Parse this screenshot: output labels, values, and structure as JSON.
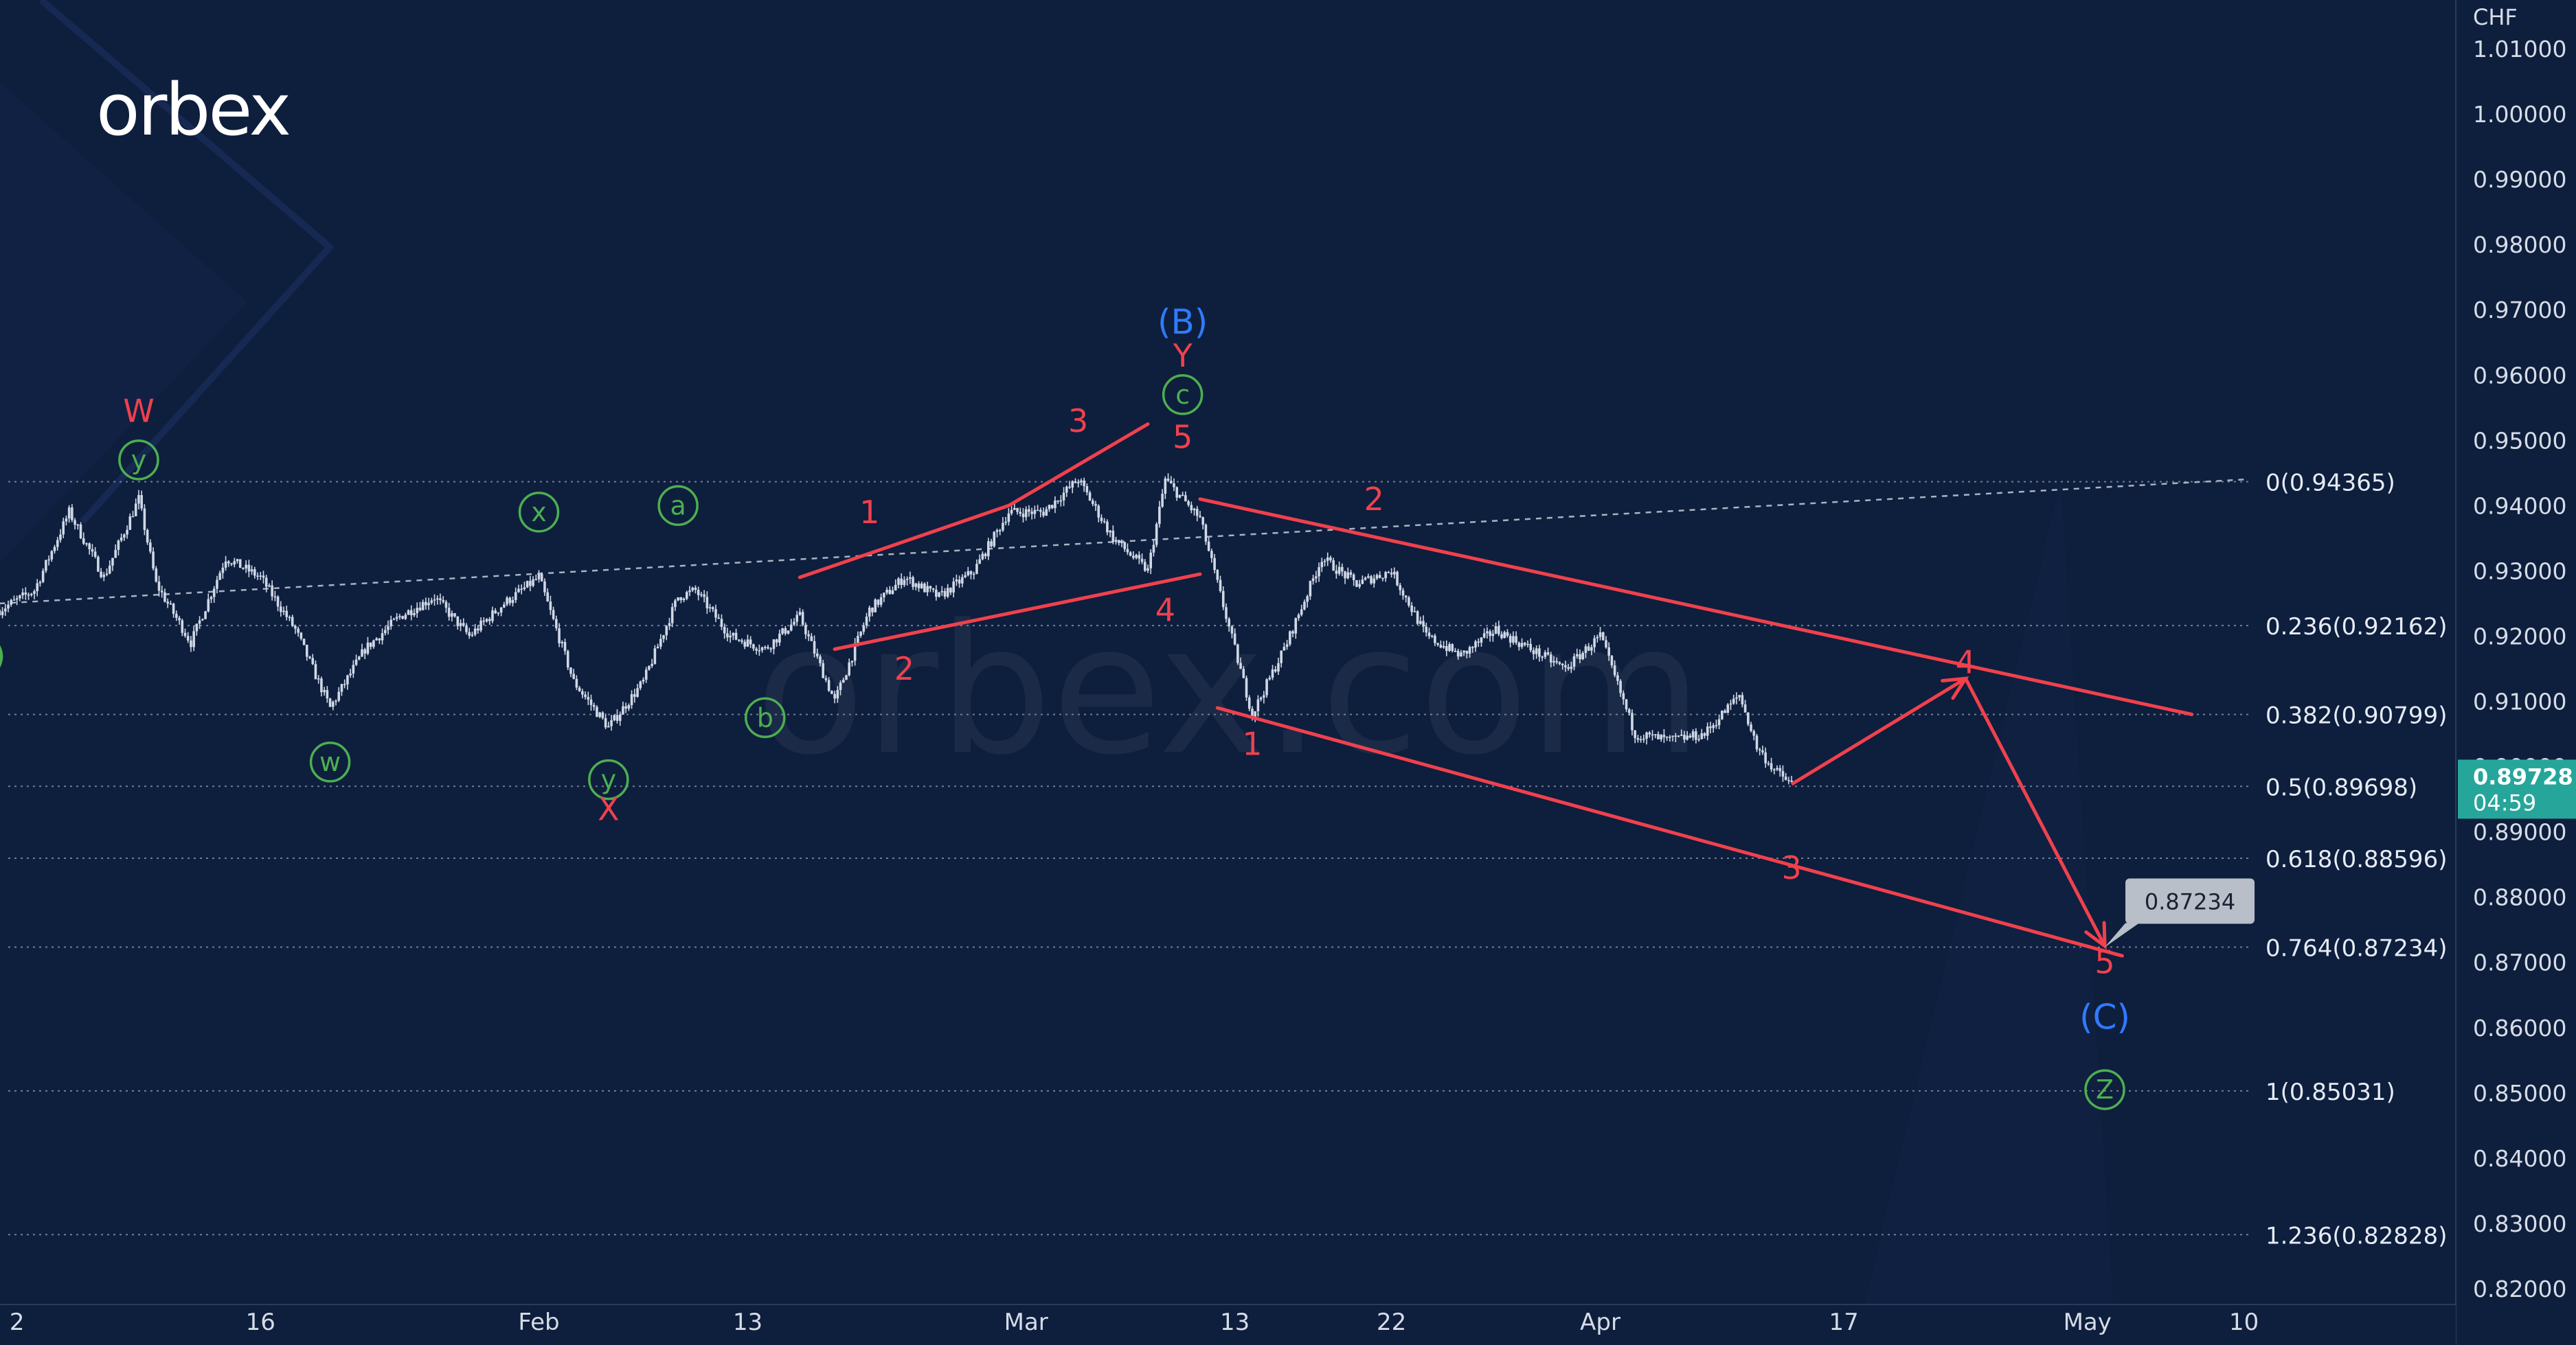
{
  "brand": {
    "logo_text": "orbex",
    "watermark_text": "orbex.com"
  },
  "colors": {
    "background": "#0e1e3d",
    "candle": "#cfd8e6",
    "wave_red": "#f0414d",
    "wave_green": "#4caf50",
    "wave_blue": "#2f7bff",
    "fib_line": "#8c96a8",
    "price_badge": "#26a69a",
    "callout": "#b8bfc9"
  },
  "chart_data": {
    "type": "candlestick",
    "symbol_currency": "CHF",
    "y_axis": {
      "unit": "CHF",
      "range": [
        0.815,
        1.015
      ],
      "ticks": [
        "1.01000",
        "1.00000",
        "0.99000",
        "0.98000",
        "0.97000",
        "0.96000",
        "0.95000",
        "0.94000",
        "0.93000",
        "0.92000",
        "0.91000",
        "0.90000",
        "0.89000",
        "0.88000",
        "0.87000",
        "0.86000",
        "0.85000",
        "0.84000",
        "0.83000",
        "0.82000"
      ]
    },
    "x_axis": {
      "range": [
        "2022-12-31",
        "2023-05-14"
      ],
      "ticks": [
        {
          "label": "2",
          "date": "2023-01-02"
        },
        {
          "label": "16",
          "date": "2023-01-16"
        },
        {
          "label": "Feb",
          "date": "2023-02-01"
        },
        {
          "label": "13",
          "date": "2023-02-13"
        },
        {
          "label": "Mar",
          "date": "2023-03-01"
        },
        {
          "label": "13",
          "date": "2023-03-13"
        },
        {
          "label": "22",
          "date": "2023-03-22"
        },
        {
          "label": "Apr",
          "date": "2023-04-03"
        },
        {
          "label": "17",
          "date": "2023-04-17"
        },
        {
          "label": "May",
          "date": "2023-05-01"
        },
        {
          "label": "10",
          "date": "2023-05-10"
        }
      ]
    },
    "price_path": [
      [
        "2023-01-01",
        0.924
      ],
      [
        "2023-01-03",
        0.927
      ],
      [
        "2023-01-05",
        0.939
      ],
      [
        "2023-01-07",
        0.929
      ],
      [
        "2023-01-09",
        0.941
      ],
      [
        "2023-01-10",
        0.928
      ],
      [
        "2023-01-12",
        0.919
      ],
      [
        "2023-01-14",
        0.932
      ],
      [
        "2023-01-16",
        0.929
      ],
      [
        "2023-01-18",
        0.921
      ],
      [
        "2023-01-20",
        0.909
      ],
      [
        "2023-01-22",
        0.918
      ],
      [
        "2023-01-24",
        0.923
      ],
      [
        "2023-01-26",
        0.926
      ],
      [
        "2023-01-28",
        0.92
      ],
      [
        "2023-01-30",
        0.925
      ],
      [
        "2023-02-01",
        0.929
      ],
      [
        "2023-02-03",
        0.913
      ],
      [
        "2023-02-05",
        0.906
      ],
      [
        "2023-02-07",
        0.913
      ],
      [
        "2023-02-09",
        0.926
      ],
      [
        "2023-02-10",
        0.927
      ],
      [
        "2023-02-12",
        0.92
      ],
      [
        "2023-02-14",
        0.918
      ],
      [
        "2023-02-16",
        0.923
      ],
      [
        "2023-02-18",
        0.91
      ],
      [
        "2023-02-20",
        0.924
      ],
      [
        "2023-02-22",
        0.929
      ],
      [
        "2023-02-24",
        0.926
      ],
      [
        "2023-02-26",
        0.93
      ],
      [
        "2023-02-28",
        0.939
      ],
      [
        "2023-03-02",
        0.939
      ],
      [
        "2023-03-04",
        0.944
      ],
      [
        "2023-03-06",
        0.935
      ],
      [
        "2023-03-08",
        0.93
      ],
      [
        "2023-03-09",
        0.944
      ],
      [
        "2023-03-11",
        0.938
      ],
      [
        "2023-03-13",
        0.918
      ],
      [
        "2023-03-14",
        0.908
      ],
      [
        "2023-03-16",
        0.919
      ],
      [
        "2023-03-18",
        0.932
      ],
      [
        "2023-03-20",
        0.928
      ],
      [
        "2023-03-22",
        0.93
      ],
      [
        "2023-03-24",
        0.92
      ],
      [
        "2023-03-26",
        0.917
      ],
      [
        "2023-03-28",
        0.921
      ],
      [
        "2023-03-30",
        0.918
      ],
      [
        "2023-04-01",
        0.915
      ],
      [
        "2023-04-03",
        0.92
      ],
      [
        "2023-04-05",
        0.905
      ],
      [
        "2023-04-07",
        0.904
      ],
      [
        "2023-04-09",
        0.905
      ],
      [
        "2023-04-11",
        0.911
      ],
      [
        "2023-04-12",
        0.903
      ],
      [
        "2023-04-13",
        0.8995
      ],
      [
        "2023-04-14",
        0.8973
      ]
    ],
    "current_price": {
      "value": "0.89728",
      "countdown": "04:59"
    },
    "fibonacci_levels": [
      {
        "ratio": "0",
        "value": 0.94365,
        "label": "0(0.94365)"
      },
      {
        "ratio": "0.236",
        "value": 0.92162,
        "label": "0.236(0.92162)"
      },
      {
        "ratio": "0.382",
        "value": 0.90799,
        "label": "0.382(0.90799)"
      },
      {
        "ratio": "0.5",
        "value": 0.89698,
        "label": "0.5(0.89698)"
      },
      {
        "ratio": "0.618",
        "value": 0.88596,
        "label": "0.618(0.88596)"
      },
      {
        "ratio": "0.764",
        "value": 0.87234,
        "label": "0.764(0.87234)"
      },
      {
        "ratio": "1",
        "value": 0.85031,
        "label": "1(0.85031)"
      },
      {
        "ratio": "1.236",
        "value": 0.82828,
        "label": "1.236(0.82828)"
      }
    ],
    "dashed_trendline": [
      [
        "2023-01-01",
        0.925
      ],
      [
        "2023-05-10",
        0.944
      ]
    ],
    "channel_lines": [
      [
        [
          "2023-02-16",
          0.929
        ],
        [
          "2023-02-28",
          0.94
        ],
        [
          "2023-03-08",
          0.9525
        ]
      ],
      [
        [
          "2023-02-18",
          0.918
        ],
        [
          "2023-03-11",
          0.9295
        ]
      ],
      [
        [
          "2023-03-11",
          0.941
        ],
        [
          "2023-05-07",
          0.908
        ]
      ],
      [
        [
          "2023-03-12",
          0.909
        ],
        [
          "2023-05-03",
          0.871
        ]
      ]
    ],
    "forecast_path": [
      [
        "2023-04-14",
        0.8973
      ],
      [
        "2023-04-24",
        0.9135
      ],
      [
        "2023-05-02",
        0.8725
      ]
    ],
    "target_callout": {
      "value": "0.87234",
      "date": "2023-05-02",
      "price": 0.87234
    },
    "wave_labels": [
      {
        "text": "W",
        "style": "red",
        "date": "2023-01-09",
        "price": 0.9545
      },
      {
        "text": "y",
        "style": "green-circle",
        "date": "2023-01-09",
        "price": 0.947
      },
      {
        "text": "w",
        "style": "green-circle",
        "date": "2023-01-20",
        "price": 0.9007
      },
      {
        "text": "x",
        "style": "green-circle",
        "date": "2023-02-01",
        "price": 0.939
      },
      {
        "text": "y",
        "style": "green-circle",
        "date": "2023-02-05",
        "price": 0.898
      },
      {
        "text": "X",
        "style": "red",
        "date": "2023-02-05",
        "price": 0.8935
      },
      {
        "text": "a",
        "style": "green-circle",
        "date": "2023-02-09",
        "price": 0.94
      },
      {
        "text": "b",
        "style": "green-circle",
        "date": "2023-02-14",
        "price": 0.9075
      },
      {
        "text": "1",
        "style": "red",
        "date": "2023-02-20",
        "price": 0.939
      },
      {
        "text": "2",
        "style": "red",
        "date": "2023-02-22",
        "price": 0.915
      },
      {
        "text": "3",
        "style": "red",
        "date": "2023-03-04",
        "price": 0.953
      },
      {
        "text": "4",
        "style": "red",
        "date": "2023-03-09",
        "price": 0.924
      },
      {
        "text": "5",
        "style": "red",
        "date": "2023-03-10",
        "price": 0.9505
      },
      {
        "text": "c",
        "style": "green-circle",
        "date": "2023-03-10",
        "price": 0.957
      },
      {
        "text": "Y",
        "style": "red",
        "date": "2023-03-10",
        "price": 0.963
      },
      {
        "text": "(B)",
        "style": "blue",
        "date": "2023-03-10",
        "price": 0.968
      },
      {
        "text": "1",
        "style": "red",
        "date": "2023-03-14",
        "price": 0.9035
      },
      {
        "text": "2",
        "style": "red",
        "date": "2023-03-21",
        "price": 0.941
      },
      {
        "text": "3",
        "style": "red",
        "date": "2023-04-14",
        "price": 0.8845
      },
      {
        "text": "4",
        "style": "red",
        "date": "2023-04-24",
        "price": 0.916
      },
      {
        "text": "5",
        "style": "red",
        "date": "2023-05-02",
        "price": 0.87
      },
      {
        "text": "(C)",
        "style": "blue",
        "date": "2023-05-02",
        "price": 0.8615
      },
      {
        "text": "Z",
        "style": "green-circle",
        "date": "2023-05-02",
        "price": 0.8505
      },
      {
        "text": ")",
        "style": "green",
        "date": "2023-01-01",
        "price": 0.917
      }
    ]
  }
}
